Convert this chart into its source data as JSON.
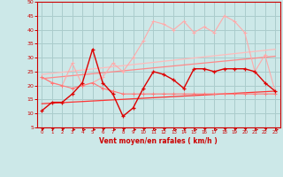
{
  "xlabel": "Vent moyen/en rafales ( km/h )",
  "xlim": [
    -0.5,
    23.5
  ],
  "ylim": [
    5,
    50
  ],
  "yticks": [
    5,
    10,
    15,
    20,
    25,
    30,
    35,
    40,
    45,
    50
  ],
  "xticks": [
    0,
    1,
    2,
    3,
    4,
    5,
    6,
    7,
    8,
    9,
    10,
    11,
    12,
    13,
    14,
    15,
    16,
    17,
    18,
    19,
    20,
    21,
    22,
    23
  ],
  "bg_color": "#cce8e8",
  "grid_color": "#aacccc",
  "axis_color": "#cc0000",
  "x": [
    0,
    1,
    2,
    3,
    4,
    5,
    6,
    7,
    8,
    9,
    10,
    11,
    12,
    13,
    14,
    15,
    16,
    17,
    18,
    19,
    20,
    21,
    22,
    23
  ],
  "line1_y": [
    11,
    14,
    14,
    17,
    21,
    33,
    21,
    17,
    9,
    12,
    19,
    25,
    24,
    22,
    19,
    26,
    26,
    25,
    26,
    26,
    26,
    25,
    21,
    18
  ],
  "line1_color": "#dd0000",
  "line2_y": [
    23,
    21,
    20,
    19,
    20,
    21,
    19,
    18,
    17,
    17,
    17,
    17,
    17,
    17,
    17,
    17,
    17,
    17,
    17,
    17,
    17,
    17,
    17,
    17
  ],
  "line2_color": "#ff7777",
  "line3_y": [
    23,
    21,
    20,
    28,
    20,
    21,
    23,
    28,
    25,
    30,
    36,
    43,
    42,
    40,
    43,
    39,
    41,
    39,
    45,
    43,
    39,
    25,
    31,
    18
  ],
  "line3_color": "#ffaaaa",
  "line4_trend": [
    [
      0,
      13.5
    ],
    [
      23,
      18.0
    ]
  ],
  "line4_color": "#ff3333",
  "line5_trend": [
    [
      0,
      22.5
    ],
    [
      23,
      30.5
    ]
  ],
  "line5_color": "#ff8888",
  "line6_trend": [
    [
      0,
      24.0
    ],
    [
      23,
      33.0
    ]
  ],
  "line6_color": "#ffbbbb",
  "arrow_angles": [
    45,
    45,
    45,
    0,
    0,
    0,
    45,
    0,
    45,
    0,
    45,
    0,
    45,
    0,
    45,
    0,
    45,
    0,
    45,
    45,
    45,
    0,
    45,
    0
  ]
}
